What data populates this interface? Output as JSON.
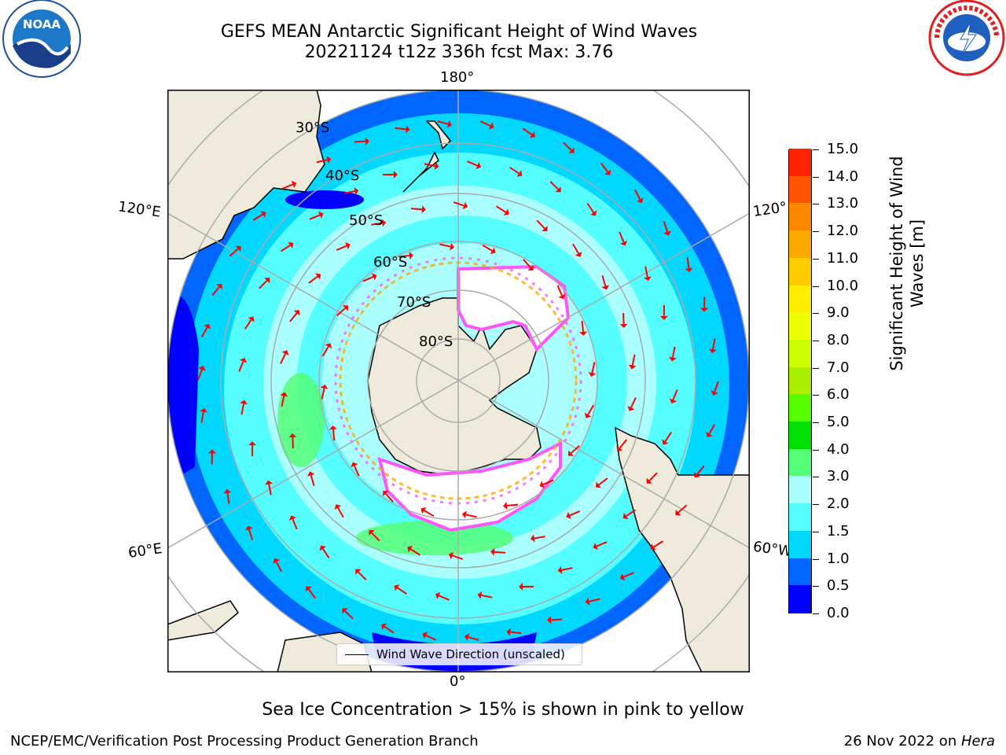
{
  "title": {
    "line1": "GEFS MEAN Antarctic Significant Height of Wind Waves",
    "line2": "20221124 t12z 336h fcst   Max: 3.76"
  },
  "logos": {
    "left": {
      "text": "NOAA",
      "icon": "noaa-logo-icon",
      "color": "#1e78c8"
    },
    "right": {
      "icon": "national-weather-service-logo-icon",
      "color": "#e02020"
    }
  },
  "map": {
    "longitude_labels": {
      "top": "180°",
      "bottom": "0°",
      "upper_left": "120°E",
      "upper_right": "120°",
      "lower_left": "60°E",
      "lower_right": "60°W"
    },
    "latitude_labels": [
      "30°S",
      "40°S",
      "50°S",
      "60°S",
      "70°S",
      "80°S"
    ],
    "legend_label": "Wind Wave Direction (unscaled)",
    "colors": {
      "land": "#eeeadc",
      "ice": "#ffffff",
      "arrow": "#ff0000",
      "grid": "#aaaaaa"
    }
  },
  "colorbar": {
    "ticks": [
      "0.0",
      "0.5",
      "1.0",
      "1.5",
      "2.0",
      "3.0",
      "4.0",
      "5.0",
      "6.0",
      "7.0",
      "8.0",
      "9.0",
      "10.0",
      "11.0",
      "12.0",
      "13.0",
      "14.0",
      "15.0"
    ],
    "colors": [
      "#0000ff",
      "#0066ff",
      "#00d8ff",
      "#55ffff",
      "#aaffff",
      "#55ff77",
      "#00e000",
      "#55ff00",
      "#aaee00",
      "#ccff00",
      "#eeff00",
      "#ffee00",
      "#ffcc00",
      "#ffaa00",
      "#ff8800",
      "#ff5500",
      "#ff2200"
    ],
    "label": "Significant Height of Wind Waves [m]"
  },
  "caption": "Sea Ice Concentration > 15% is shown in pink to yellow",
  "footer": {
    "left": "NCEP/EMC/Verification Post Processing Product Generation Branch",
    "right_prefix": "26 Nov 2022 on ",
    "right_machine": "Hera"
  }
}
